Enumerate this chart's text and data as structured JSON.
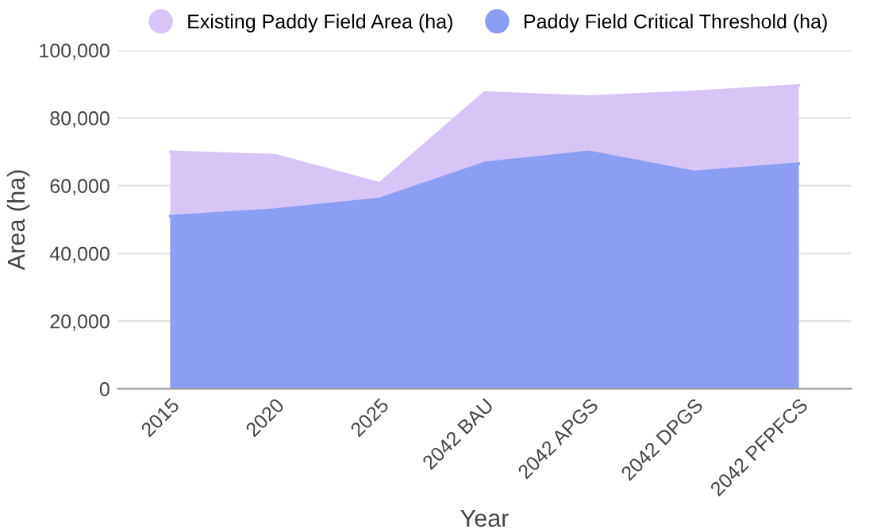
{
  "chart_data": {
    "type": "area",
    "xlabel": "Year",
    "ylabel": "Area (ha)",
    "categories": [
      "2015",
      "2020",
      "2025",
      "2042 BAU",
      "2042 APGS",
      "2042 DPGS",
      "2042 PFPFCS"
    ],
    "series": [
      {
        "name": "Existing Paddy Field Area (ha)",
        "color": "#d7c5f7",
        "values": [
          70000,
          69000,
          60700,
          87500,
          86300,
          87700,
          89600
        ]
      },
      {
        "name": "Paddy Field Critical Threshold (ha)",
        "color": "#8c9ef4",
        "values": [
          51000,
          52900,
          56100,
          66700,
          70000,
          64100,
          66500
        ]
      }
    ],
    "ylim": [
      0,
      100000
    ],
    "yticks": [
      0,
      {
        "value": 20000,
        "label": "20,000"
      },
      {
        "value": 40000,
        "label": "40,000"
      },
      {
        "value": 60000,
        "label": "60,000"
      },
      {
        "value": 80000,
        "label": "80,000"
      },
      {
        "value": 100000,
        "label": "100,000"
      }
    ],
    "grid": "y",
    "legend": "top"
  }
}
